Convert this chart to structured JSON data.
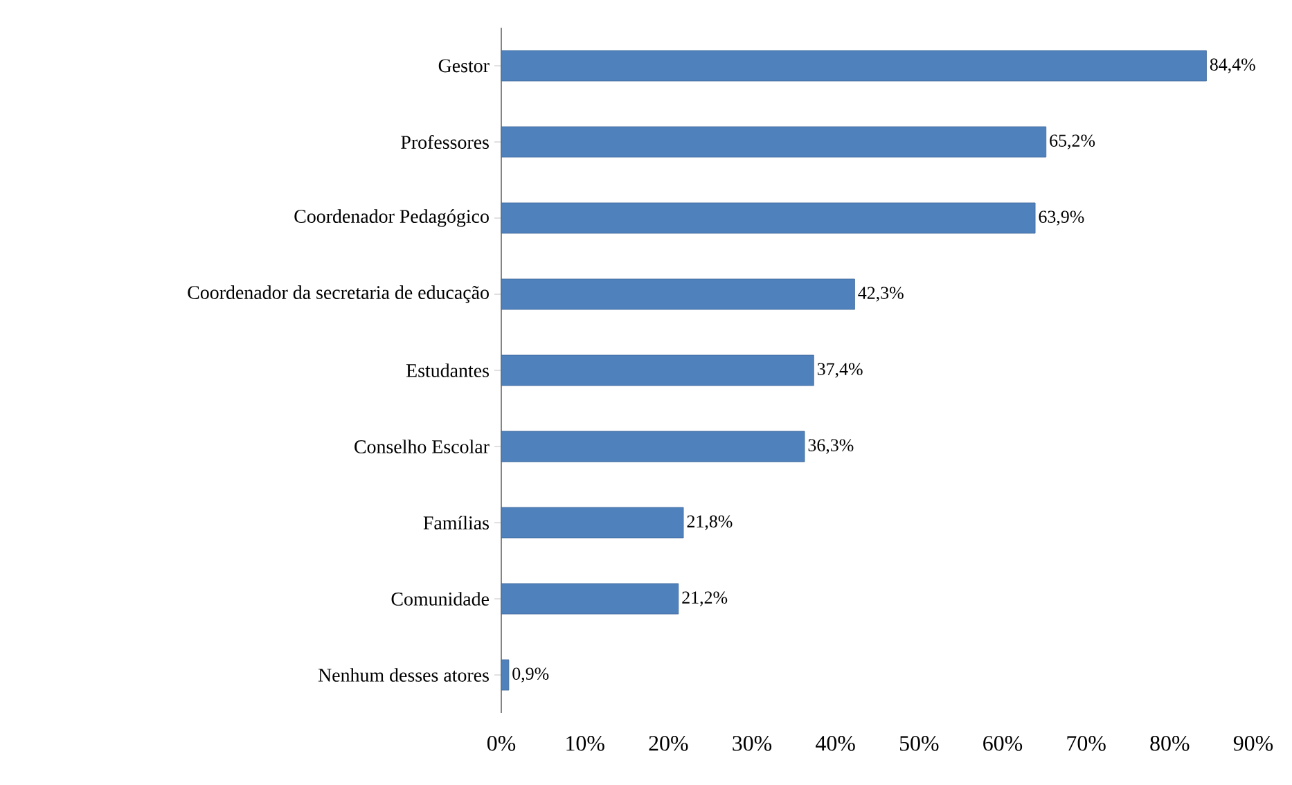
{
  "chart_data": {
    "type": "bar",
    "orientation": "horizontal",
    "categories": [
      "Gestor",
      "Professores",
      "Coordenador Pedagógico",
      "Coordenador da secretaria de educação",
      "Estudantes",
      "Conselho Escolar",
      "Famílias",
      "Comunidade",
      "Nenhum desses atores"
    ],
    "values": [
      84.4,
      65.2,
      63.9,
      42.3,
      37.4,
      36.3,
      21.8,
      21.2,
      0.9
    ],
    "value_labels": [
      "84,4%",
      "65,2%",
      "63,9%",
      "42,3%",
      "37,4%",
      "36,3%",
      "21,8%",
      "21,2%",
      "0,9%"
    ],
    "color": "#4f81bd",
    "xlim": [
      0,
      90
    ],
    "xticks": [
      {
        "value": 0,
        "label": "0%"
      },
      {
        "value": 10,
        "label": "10%"
      },
      {
        "value": 20,
        "label": "20%"
      },
      {
        "value": 30,
        "label": "30%"
      },
      {
        "value": 40,
        "label": "40%"
      },
      {
        "value": 50,
        "label": "50%"
      },
      {
        "value": 60,
        "label": "60%"
      },
      {
        "value": 70,
        "label": "70%"
      },
      {
        "value": 80,
        "label": "80%"
      },
      {
        "value": 90,
        "label": "90%"
      }
    ],
    "grid": false
  }
}
